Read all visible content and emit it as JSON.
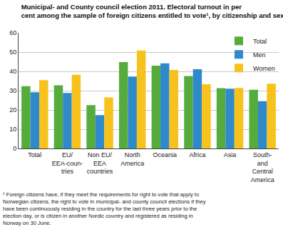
{
  "chart_data": {
    "type": "bar",
    "title": "Municipal- and County council election 2011. Electoral turnout in per\ncent among the sample of foreign citizens entitled to vote¹, by citizenship and sex",
    "footnote": "¹ Foreign citizens have, if they meet the requirements for right to vote that apply to\nNorwegian citizens, the right to vote in municipal- and county council elections if they\nhave been continuously residing in the country for the last three years prior to the\nelection day, or is citizen in another Nordic country and registered as residing in\nNorway on 30 June.",
    "categories": [
      "Total",
      "EU/\nEEA-coun-\ntries",
      "Non EU/\nEEA\ncountries",
      "North\nAmerica",
      "Oceania",
      "Africa",
      "Asia",
      "South-\nand\nCentral\nAmerica"
    ],
    "series": [
      {
        "name": "Total",
        "color": "#55ac3c",
        "values": [
          32.3,
          32.8,
          22.5,
          44.8,
          43.0,
          37.6,
          31.3,
          30.5
        ]
      },
      {
        "name": "Men",
        "color": "#2f8acb",
        "values": [
          29.2,
          28.8,
          17.3,
          37.3,
          44.2,
          41.1,
          31.0,
          24.5
        ]
      },
      {
        "name": "Women",
        "color": "#f7c21b",
        "values": [
          35.5,
          38.2,
          26.5,
          50.8,
          40.7,
          33.3,
          31.4,
          33.6
        ]
      }
    ],
    "ylim": [
      0,
      60
    ],
    "yticks": [
      0,
      10,
      20,
      30,
      40,
      50,
      60
    ],
    "grid": true,
    "legend": "top-right"
  }
}
